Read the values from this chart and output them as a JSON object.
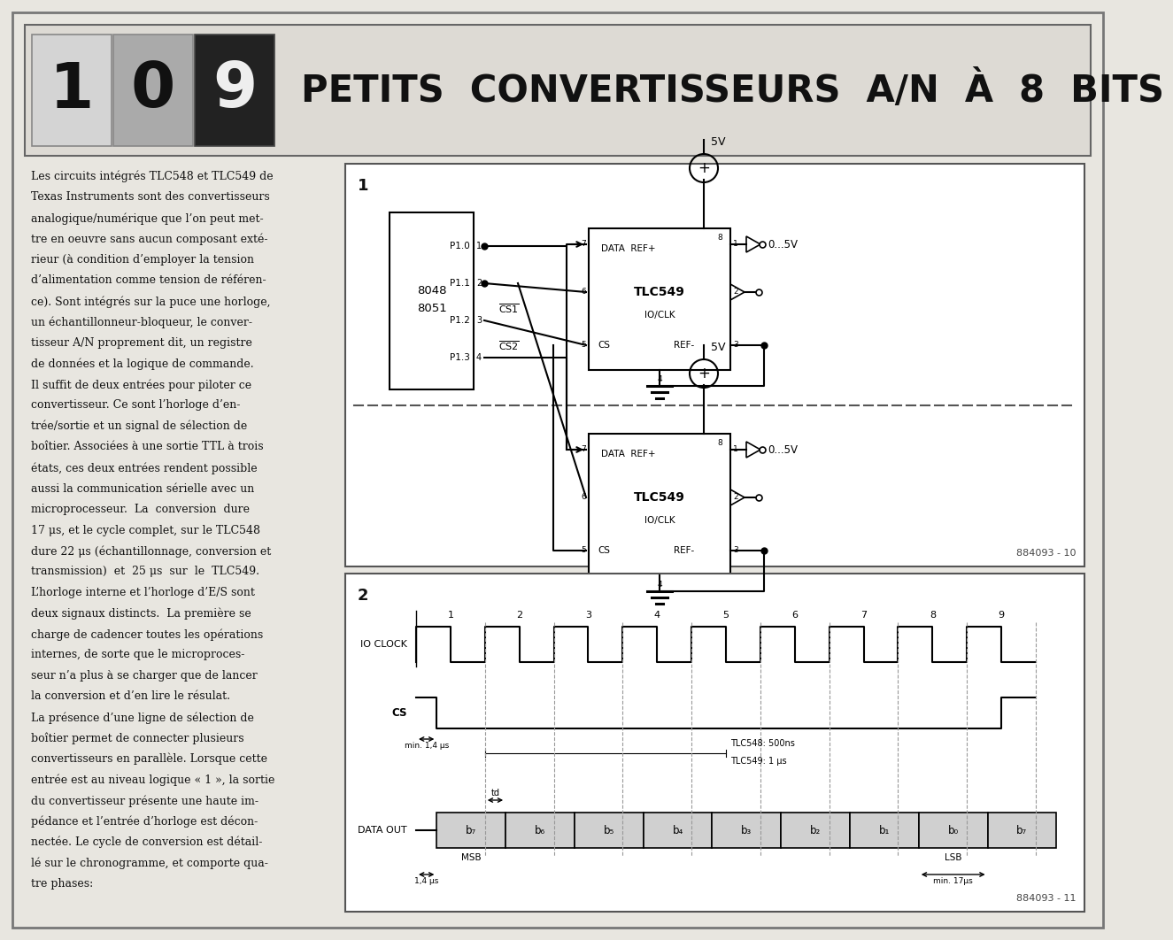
{
  "title": "PETITS  CONVERTISSEURS  A/N  À  8  BITS",
  "page_bg": "#e8e6e0",
  "body_text_lines": [
    "Les circuits intégrés TLC548 et TLC549 de",
    "Texas Instruments sont des convertisseurs",
    "analogique/numérique que l’on peut met-",
    "tre en oeuvre sans aucun composant exté-",
    "rieur (à condition d’employer la tension",
    "d’alimentation comme tension de référen-",
    "ce). Sont intégrés sur la puce une horloge,",
    "un échantillonneur-bloqueur, le conver-",
    "tisseur A/N proprement dit, un registre",
    "de données et la logique de commande.",
    "Il suffit de deux entrées pour piloter ce",
    "convertisseur. Ce sont l’horloge d’en-",
    "trée/sortie et un signal de sélection de",
    "boîtier. Associées à une sortie TTL à trois",
    "états, ces deux entrées rendent possible",
    "aussi la communication sérielle avec un",
    "microprocesseur.  La  conversion  dure",
    "17 μs, et le cycle complet, sur le TLC548",
    "dure 22 μs (échantillonnage, conversion et",
    "transmission)  et  25 μs  sur  le  TLC549.",
    "L’horloge interne et l’horloge d’E/S sont",
    "deux signaux distincts.  La première se",
    "charge de cadencer toutes les opérations",
    "internes, de sorte que le microproces-",
    "seur n’a plus à se charger que de lancer",
    "la conversion et d’en lire le résulat.",
    "La présence d’une ligne de sélection de",
    "boîtier permet de connecter plusieurs",
    "convertisseurs en parallèle. Lorsque cette",
    "entrée est au niveau logique « 1 », la sortie",
    "du convertisseur présente une haute im-",
    "pédance et l’entrée d’horloge est décon-",
    "nectée. Le cycle de conversion est détail-",
    "lé sur le chronogramme, et comporte qua-",
    "tre phases:"
  ],
  "ref1": "884093 - 10",
  "ref2": "884093 - 11"
}
